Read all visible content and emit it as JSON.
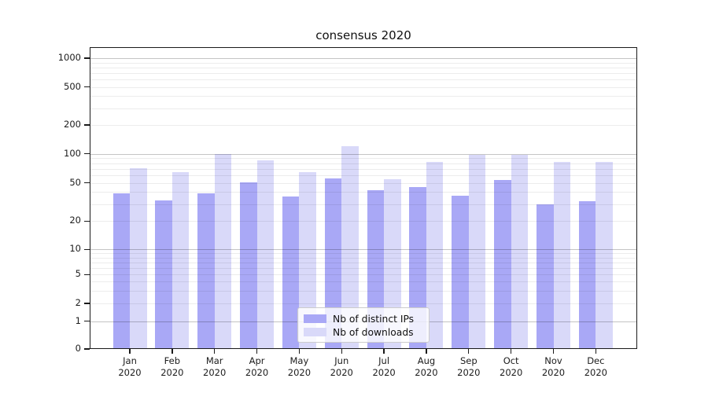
{
  "chart_data": {
    "type": "bar",
    "title": "consensus 2020",
    "categories": [
      "Jan",
      "Feb",
      "Mar",
      "Apr",
      "May",
      "Jun",
      "Jul",
      "Aug",
      "Sep",
      "Oct",
      "Nov",
      "Dec"
    ],
    "year": "2020",
    "series": [
      {
        "name": "Nb of distinct IPs",
        "color": "#a9a8f6",
        "values": [
          39,
          33,
          39,
          51,
          36,
          56,
          42,
          45,
          37,
          54,
          30,
          32
        ]
      },
      {
        "name": "Nb of downloads",
        "color": "#d9d9f9",
        "values": [
          71,
          64,
          99,
          85,
          64,
          120,
          55,
          83,
          97,
          97,
          82,
          83
        ]
      }
    ],
    "yscale": "symlog",
    "ytick_labels": [
      "1000",
      "500",
      "200",
      "100",
      "50",
      "20",
      "10",
      "5",
      "2",
      "1",
      "0"
    ],
    "ytick_values": [
      1000,
      500,
      200,
      100,
      50,
      20,
      10,
      5,
      2,
      1,
      0
    ],
    "xlabel": "",
    "ylabel": "",
    "grid": true,
    "legend_position": "lower center"
  }
}
